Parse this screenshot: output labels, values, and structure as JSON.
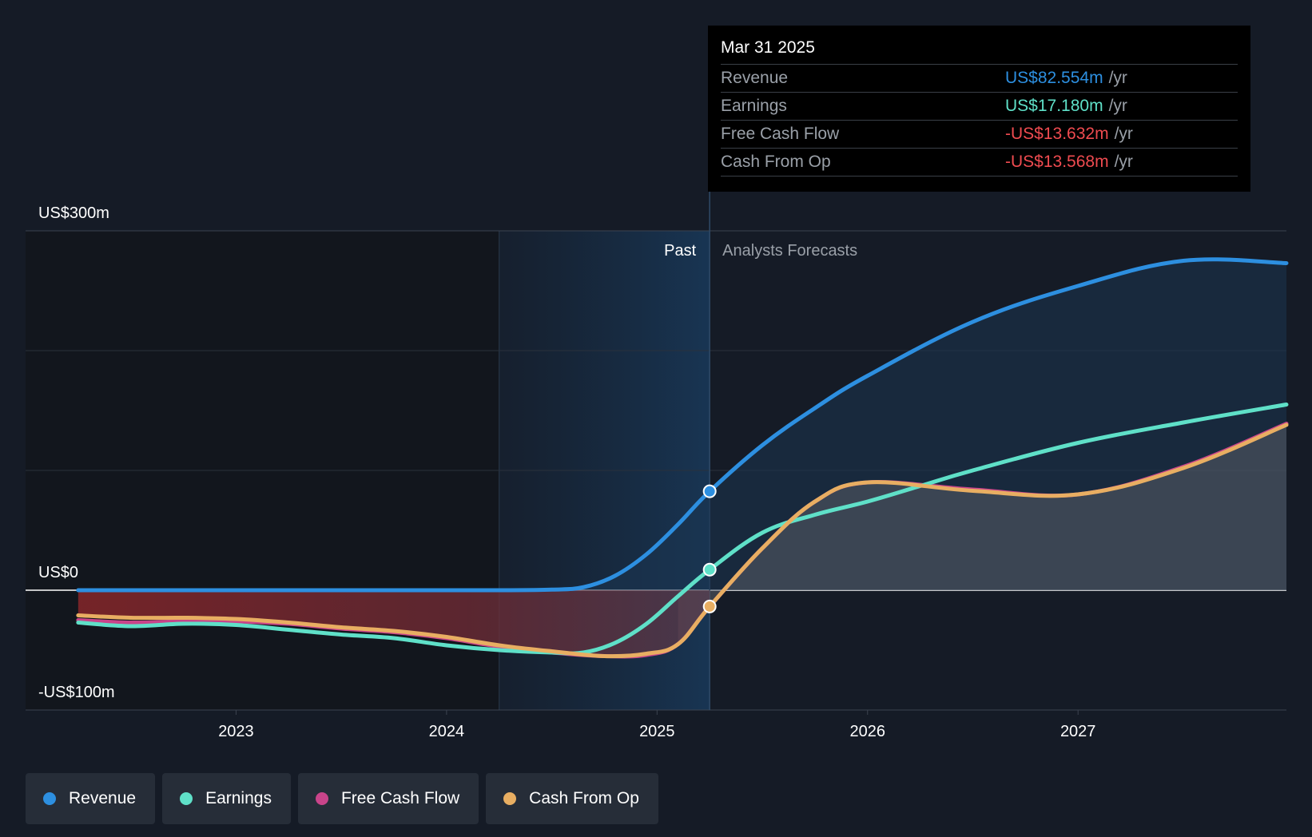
{
  "tooltip": {
    "date": "Mar 31 2025",
    "rows": [
      {
        "name": "Revenue",
        "value": "US$82.554m",
        "unit": "/yr",
        "color": "#2d8fe0"
      },
      {
        "name": "Earnings",
        "value": "US$17.180m",
        "unit": "/yr",
        "color": "#5fe0c8"
      },
      {
        "name": "Free Cash Flow",
        "value": "-US$13.632m",
        "unit": "/yr",
        "color": "#ef4b50"
      },
      {
        "name": "Cash From Op",
        "value": "-US$13.568m",
        "unit": "/yr",
        "color": "#ef4b50"
      }
    ]
  },
  "section_labels": {
    "past": "Past",
    "forecast": "Analysts Forecasts"
  },
  "legend": [
    {
      "label": "Revenue",
      "color": "#2d8fe0"
    },
    {
      "label": "Earnings",
      "color": "#5fe0c8"
    },
    {
      "label": "Free Cash Flow",
      "color": "#c9448a"
    },
    {
      "label": "Cash From Op",
      "color": "#e8ae62"
    }
  ],
  "colors": {
    "revenue": "#2d8fe0",
    "earnings": "#5fe0c8",
    "free_cash_flow": "#c9448a",
    "cash_from_op": "#e8ae62",
    "negative_value": "#ef4b50",
    "background": "#151b26"
  },
  "chart_data": {
    "type": "line",
    "y_ticks": [
      {
        "value": 300,
        "label": "US$300m"
      },
      {
        "value": 0,
        "label": "US$0"
      },
      {
        "value": -100,
        "label": "-US$100m"
      }
    ],
    "ylim": [
      -100,
      300
    ],
    "y_gridlines": [
      300,
      200,
      100,
      0,
      -100
    ],
    "x_ticks": [
      {
        "value": 2023,
        "label": "2023"
      },
      {
        "value": 2024,
        "label": "2024"
      },
      {
        "value": 2025,
        "label": "2025"
      },
      {
        "value": 2026,
        "label": "2026"
      },
      {
        "value": 2027,
        "label": "2027"
      }
    ],
    "xlim": [
      2022.0,
      2027.99
    ],
    "x_unit": "year",
    "past_start": 2024.25,
    "forecast_start": 2025.25,
    "legend_position": "bottom",
    "series": [
      {
        "name": "Revenue",
        "key": "revenue",
        "points": [
          [
            2022.25,
            0
          ],
          [
            2022.75,
            0
          ],
          [
            2023.25,
            0
          ],
          [
            2023.75,
            0
          ],
          [
            2024.25,
            0
          ],
          [
            2024.5,
            0.5
          ],
          [
            2024.65,
            2.5
          ],
          [
            2024.8,
            12
          ],
          [
            2024.95,
            30
          ],
          [
            2025.1,
            55
          ],
          [
            2025.25,
            82.554
          ],
          [
            2025.5,
            121
          ],
          [
            2025.75,
            152
          ],
          [
            2026.0,
            179
          ],
          [
            2026.5,
            224
          ],
          [
            2027.0,
            254
          ],
          [
            2027.5,
            275
          ],
          [
            2027.99,
            273
          ]
        ],
        "forecast_points": [
          [
            2027.99,
            273
          ]
        ]
      },
      {
        "name": "Earnings",
        "key": "earnings",
        "points": [
          [
            2022.25,
            -27
          ],
          [
            2022.5,
            -30
          ],
          [
            2022.75,
            -28
          ],
          [
            2023.0,
            -29
          ],
          [
            2023.25,
            -33
          ],
          [
            2023.5,
            -37
          ],
          [
            2023.75,
            -40
          ],
          [
            2024.0,
            -46
          ],
          [
            2024.25,
            -50
          ],
          [
            2024.5,
            -52
          ],
          [
            2024.65,
            -52
          ],
          [
            2024.8,
            -44
          ],
          [
            2024.95,
            -28
          ],
          [
            2025.1,
            -5
          ],
          [
            2025.25,
            17.18
          ],
          [
            2025.5,
            48
          ],
          [
            2025.75,
            63
          ],
          [
            2026.0,
            74
          ],
          [
            2026.25,
            87
          ],
          [
            2026.5,
            100
          ],
          [
            2027.0,
            123
          ],
          [
            2027.5,
            140
          ],
          [
            2027.99,
            155
          ]
        ]
      },
      {
        "name": "Free Cash Flow",
        "key": "free_cash_flow",
        "points": [
          [
            2022.25,
            -25
          ],
          [
            2022.5,
            -27
          ],
          [
            2022.75,
            -26
          ],
          [
            2023.0,
            -26
          ],
          [
            2023.25,
            -28
          ],
          [
            2023.5,
            -32
          ],
          [
            2023.75,
            -35
          ],
          [
            2024.0,
            -40
          ],
          [
            2024.25,
            -47
          ],
          [
            2024.5,
            -52
          ],
          [
            2024.75,
            -55
          ],
          [
            2024.95,
            -54
          ],
          [
            2025.1,
            -45
          ],
          [
            2025.25,
            -13.632
          ],
          [
            2025.5,
            35
          ],
          [
            2025.75,
            74
          ],
          [
            2026.0,
            90
          ],
          [
            2026.5,
            84
          ],
          [
            2027.0,
            80
          ],
          [
            2027.5,
            103
          ],
          [
            2027.99,
            139
          ]
        ]
      },
      {
        "name": "Cash From Op",
        "key": "cash_from_op",
        "points": [
          [
            2022.25,
            -21
          ],
          [
            2022.5,
            -23
          ],
          [
            2022.75,
            -23
          ],
          [
            2023.0,
            -24
          ],
          [
            2023.25,
            -27
          ],
          [
            2023.5,
            -31
          ],
          [
            2023.75,
            -34
          ],
          [
            2024.0,
            -39
          ],
          [
            2024.25,
            -46
          ],
          [
            2024.5,
            -51
          ],
          [
            2024.75,
            -55
          ],
          [
            2024.95,
            -53
          ],
          [
            2025.1,
            -45
          ],
          [
            2025.25,
            -13.568
          ],
          [
            2025.5,
            35
          ],
          [
            2025.75,
            74
          ],
          [
            2026.0,
            90
          ],
          [
            2026.5,
            83
          ],
          [
            2027.0,
            80
          ],
          [
            2027.5,
            102
          ],
          [
            2027.99,
            138
          ]
        ]
      }
    ],
    "highlight_points": [
      {
        "key": "revenue",
        "x": 2025.25,
        "y": 82.554
      },
      {
        "key": "earnings",
        "x": 2025.25,
        "y": 17.18
      },
      {
        "key": "cash_from_op",
        "x": 2025.25,
        "y": -13.568
      }
    ]
  }
}
